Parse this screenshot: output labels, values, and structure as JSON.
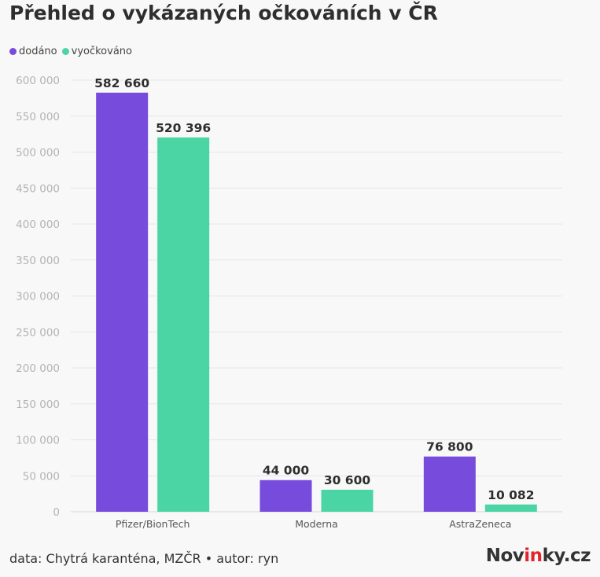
{
  "title": "Přehled o vykázaných očkováních v ČR",
  "colors": {
    "delivered": "#774bdc",
    "vaccinated": "#4bd5a5"
  },
  "footer": {
    "source": "data: Chytrá karanténa, MZČR • autor: ryn"
  },
  "brand": {
    "pre": "Nov",
    "accent": "in",
    "post": "ky.cz"
  },
  "chart_data": {
    "type": "bar",
    "categories": [
      "Pfizer/BionTech",
      "Moderna",
      "AstraZeneca"
    ],
    "series": [
      {
        "name": "dodáno",
        "values": [
          582660,
          44000,
          76800
        ],
        "labels": [
          "582 660",
          "44 000",
          "76 800"
        ]
      },
      {
        "name": "vyočkováno",
        "values": [
          520396,
          30600,
          10082
        ],
        "labels": [
          "520 396",
          "30 600",
          "10 082"
        ]
      }
    ],
    "yticks": [
      "0",
      "50 000",
      "100 000",
      "150 000",
      "200 000",
      "250 000",
      "300 000",
      "350 000",
      "400 000",
      "450 000",
      "500 000",
      "550 000",
      "600 000"
    ],
    "ylim": [
      0,
      600000
    ],
    "grid": true,
    "legend_position": "top-left",
    "title": "Přehled o vykázaných očkováních v ČR",
    "xlabel": "",
    "ylabel": ""
  }
}
